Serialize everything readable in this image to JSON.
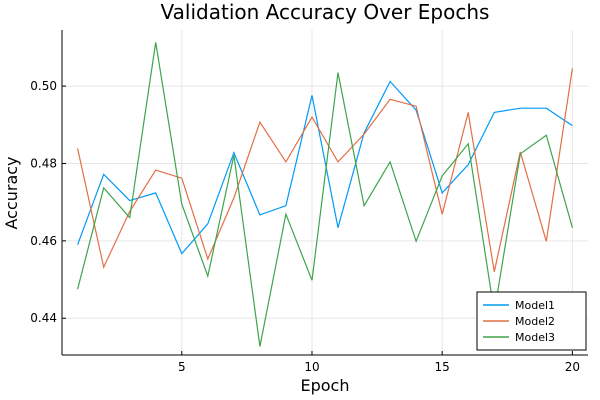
{
  "chart_data": {
    "type": "line",
    "title": "Validation Accuracy Over Epochs",
    "xlabel": "Epoch",
    "ylabel": "Accuracy",
    "x": [
      1,
      2,
      3,
      4,
      5,
      6,
      7,
      8,
      9,
      10,
      11,
      12,
      13,
      14,
      15,
      16,
      17,
      18,
      19,
      20
    ],
    "xlim": [
      0.4,
      20.6
    ],
    "ylim": [
      0.4305,
      0.5145
    ],
    "xticks": [
      5,
      10,
      15,
      20
    ],
    "yticks": [
      0.44,
      0.46,
      0.48,
      0.5
    ],
    "ytick_labels": [
      "0.44",
      "0.46",
      "0.48",
      "0.50"
    ],
    "grid": true,
    "legend": {
      "position": "bottom-right"
    },
    "series": [
      {
        "name": "Model1",
        "color": "#009AF9",
        "values": [
          0.459,
          0.4772,
          0.4704,
          0.4724,
          0.4567,
          0.4644,
          0.4828,
          0.4667,
          0.4691,
          0.4976,
          0.4634,
          0.4879,
          0.5012,
          0.4938,
          0.4724,
          0.4797,
          0.4932,
          0.4943,
          0.4943,
          0.4898
        ]
      },
      {
        "name": "Model2",
        "color": "#E26F46",
        "values": [
          0.4839,
          0.4532,
          0.4676,
          0.4783,
          0.4762,
          0.4553,
          0.4711,
          0.4907,
          0.4804,
          0.492,
          0.4804,
          0.4876,
          0.4966,
          0.4948,
          0.4669,
          0.4932,
          0.452,
          0.483,
          0.4599,
          0.5046
        ]
      },
      {
        "name": "Model3",
        "color": "#3DA44D",
        "values": [
          0.4475,
          0.4737,
          0.466,
          0.5113,
          0.4695,
          0.4509,
          0.4821,
          0.4327,
          0.4669,
          0.4498,
          0.5035,
          0.4691,
          0.4804,
          0.4599,
          0.4768,
          0.4851,
          0.4415,
          0.4825,
          0.4873,
          0.4634
        ]
      }
    ]
  }
}
